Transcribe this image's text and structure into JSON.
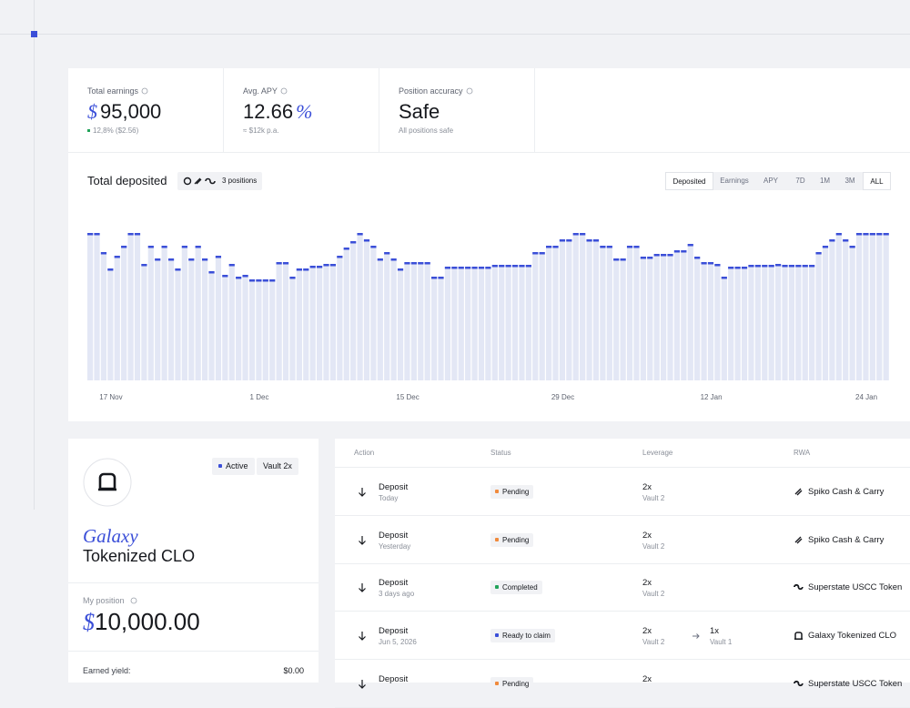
{
  "stats": [
    {
      "label": "Total earnings",
      "prefix": "$",
      "value": "95,000",
      "sub": "12,8% ($2.56)"
    },
    {
      "label": "Avg. APY",
      "value": "12.66",
      "suffix": "%",
      "sub": "≈ $12k p.a."
    },
    {
      "label": "Position accuracy",
      "value": "Safe",
      "sub": "All positions safe"
    }
  ],
  "chart_header": {
    "positions": "3 positions",
    "tabs": [
      "Deposited",
      "Earnings",
      "APY"
    ],
    "ranges": [
      "7D",
      "1M",
      "3M",
      "ALL"
    ]
  },
  "chart_data": {
    "type": "bar",
    "title": "Total deposited",
    "color": "#e3e7f5",
    "marker_color": "#3b4fd8",
    "ylim": [
      0,
      161
    ],
    "categories": [
      null,
      null,
      null,
      "17 Nov",
      null,
      null,
      null,
      null,
      null,
      null,
      null,
      null,
      null,
      null,
      null,
      null,
      null,
      null,
      null,
      null,
      null,
      null,
      null,
      null,
      null,
      "1 Dec",
      null,
      null,
      null,
      null,
      null,
      null,
      null,
      null,
      null,
      null,
      null,
      null,
      null,
      null,
      null,
      null,
      null,
      null,
      null,
      null,
      null,
      "15 Dec",
      null,
      null,
      null,
      null,
      null,
      null,
      null,
      null,
      null,
      null,
      null,
      null,
      null,
      null,
      null,
      null,
      null,
      null,
      null,
      null,
      null,
      null,
      "29 Dec",
      null,
      null,
      null,
      null,
      null,
      null,
      null,
      null,
      null,
      null,
      null,
      null,
      null,
      null,
      null,
      null,
      null,
      null,
      null,
      null,
      null,
      "12 Jan",
      null,
      null,
      null,
      null,
      null,
      null,
      null,
      null,
      null,
      null,
      null,
      null,
      null,
      null,
      null,
      null,
      null,
      null,
      null,
      null,
      null,
      null,
      "24 Jan",
      null,
      null,
      null
    ],
    "values": [
      161,
      161,
      140,
      122,
      136,
      147,
      161,
      161,
      127,
      147,
      133,
      147,
      133,
      122,
      147,
      133,
      147,
      133,
      119,
      136,
      115,
      127,
      113,
      115,
      110,
      110,
      110,
      110,
      129,
      129,
      113,
      122,
      122,
      125,
      125,
      127,
      127,
      136,
      145,
      152,
      161,
      154,
      147,
      133,
      140,
      133,
      122,
      129,
      129,
      129,
      129,
      113,
      113,
      124,
      124,
      124,
      124,
      124,
      124,
      124,
      126,
      126,
      126,
      126,
      126,
      126,
      140,
      140,
      147,
      147,
      154,
      154,
      161,
      161,
      154,
      154,
      147,
      147,
      133,
      133,
      147,
      147,
      135,
      135,
      138,
      138,
      138,
      142,
      142,
      149,
      135,
      129,
      129,
      127,
      113,
      124,
      124,
      124,
      126,
      126,
      126,
      126,
      127,
      126,
      126,
      126,
      126,
      126,
      140,
      147,
      154,
      161,
      154,
      147,
      161,
      161,
      161,
      161,
      161
    ]
  },
  "vault": {
    "badges": [
      "Active",
      "Vault 2x"
    ],
    "name_italic": "Galaxy",
    "name": "Tokenized CLO",
    "position_label": "My position",
    "position_prefix": "$",
    "position_value": "10,000.00",
    "earned_label": "Earned yield:",
    "earned_value": "$0.00"
  },
  "table": {
    "headers": [
      "Action",
      "Status",
      "Leverage",
      "RWA"
    ],
    "rows": [
      {
        "action": "Deposit",
        "date": "Today",
        "status": "Pending",
        "status_color": "#f08a3c",
        "leverage": "2x",
        "vault": "Vault 2",
        "rwa": "Spiko Cash & Carry"
      },
      {
        "action": "Deposit",
        "date": "Yesterday",
        "status": "Pending",
        "status_color": "#f08a3c",
        "leverage": "2x",
        "vault": "Vault 2",
        "rwa": "Spiko Cash & Carry"
      },
      {
        "action": "Deposit",
        "date": "3 days ago",
        "status": "Completed",
        "status_color": "#22a35a",
        "leverage": "2x",
        "vault": "Vault 2",
        "rwa": "Superstate USCC Token"
      },
      {
        "action": "Deposit",
        "date": "Jun 5, 2026",
        "status": "Ready to claim",
        "status_color": "#3b4fd8",
        "leverage": "2x",
        "vault": "Vault 2",
        "to_leverage": "1x",
        "to_vault": "Vault 1",
        "rwa": "Galaxy Tokenized CLO"
      },
      {
        "action": "Deposit",
        "status": "Pending",
        "status_color": "#f08a3c",
        "leverage": "2x",
        "rwa": "Superstate USCC Token"
      }
    ]
  }
}
